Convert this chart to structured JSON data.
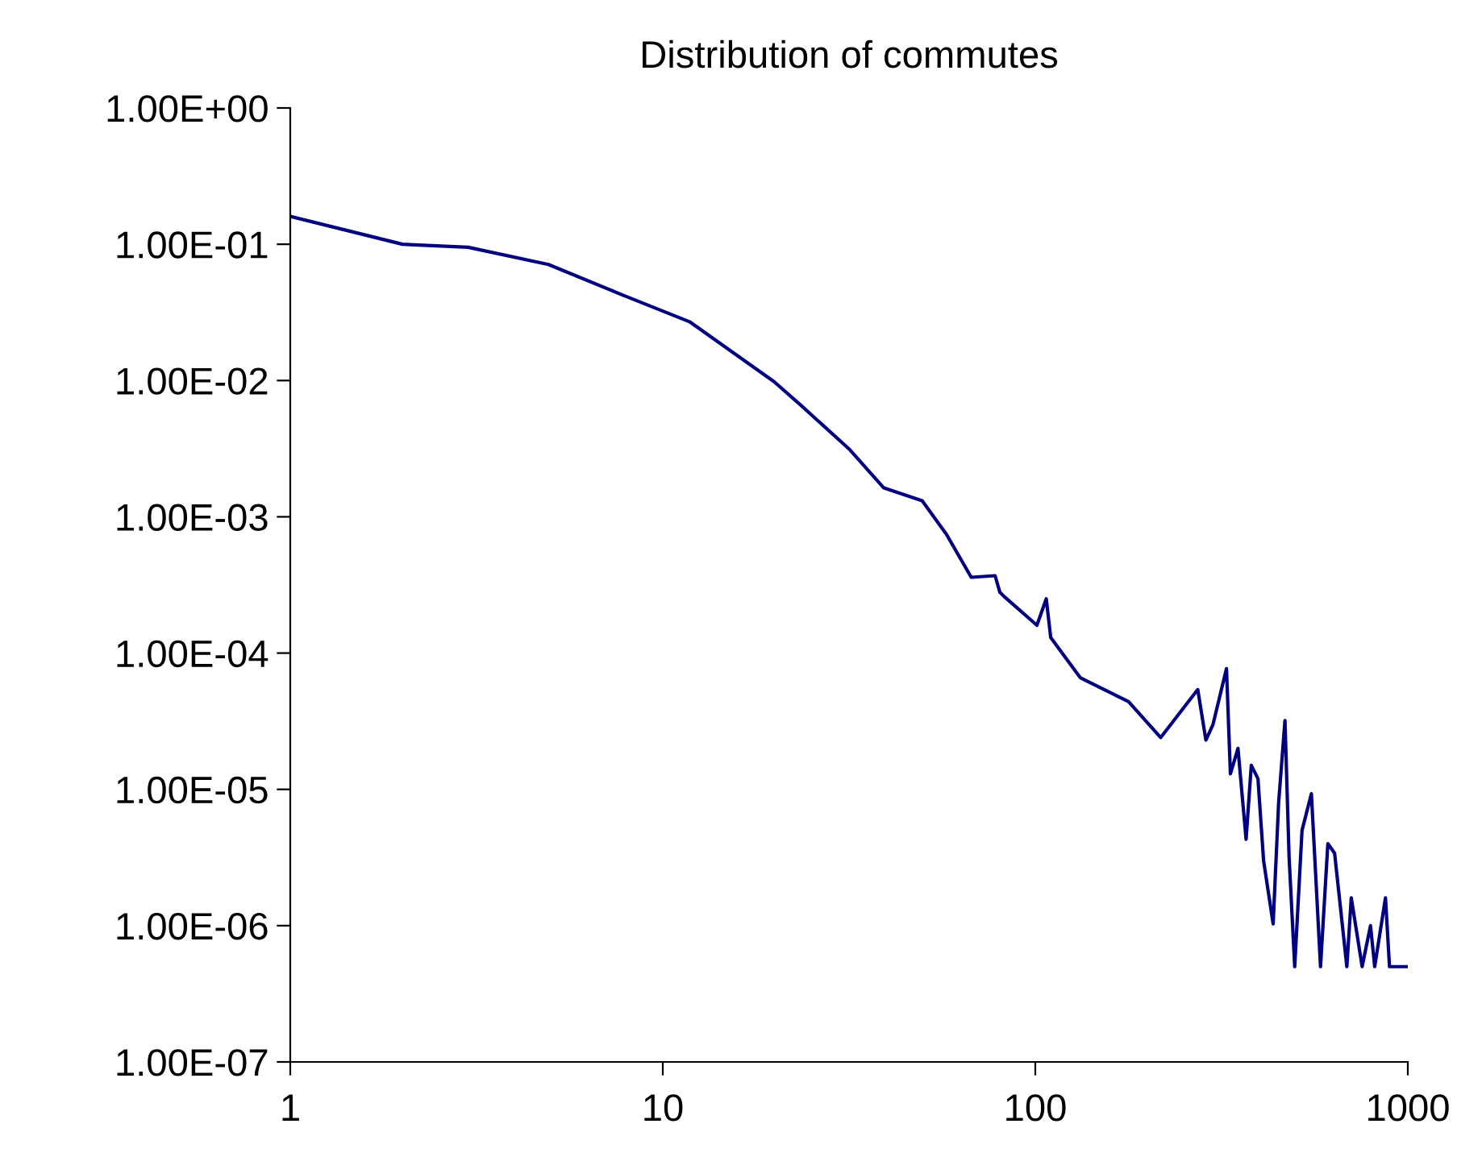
{
  "chart_data": {
    "type": "line",
    "title": "Distribution of commutes",
    "log": "xy",
    "x": [
      1,
      2,
      3,
      4.93,
      7.87,
      11.8,
      19.9,
      23.6,
      31.8,
      39.2,
      49.7,
      57.8,
      67.3,
      78,
      80.3,
      82.5,
      101,
      107,
      110,
      132,
      178,
      217,
      273,
      287,
      300,
      326,
      334,
      350,
      368,
      380,
      396,
      410,
      435,
      450,
      468,
      480,
      497,
      520,
      551,
      583,
      610,
      636,
      686,
      705,
      754,
      794,
      815,
      871,
      893,
      1000
    ],
    "series": [
      {
        "color": "#000080",
        "values": [
          0.16,
          0.1,
          0.095,
          0.071,
          0.042,
          0.027,
          0.0098,
          0.0065,
          0.0031,
          0.00163,
          0.00131,
          0.00074,
          0.00036,
          0.00037,
          0.00028,
          0.00026,
          0.00016,
          0.00025,
          0.00013,
          6.6e-05,
          4.4e-05,
          2.4e-05,
          5.4e-05,
          2.3e-05,
          3e-05,
          7.7e-05,
          1.3e-05,
          2e-05,
          4.3e-06,
          1.5e-05,
          1.2e-05,
          3e-06,
          1.03e-06,
          8e-06,
          3.2e-05,
          3.2e-06,
          5e-07,
          5e-06,
          9.3e-06,
          5e-07,
          4e-06,
          3.4e-06,
          5e-07,
          1.6e-06,
          5e-07,
          1e-06,
          5e-07,
          1.6e-06,
          5e-07,
          5e-07
        ]
      }
    ],
    "xlim": [
      1,
      1000
    ],
    "xticks": [
      1,
      10,
      100,
      1000
    ],
    "ylim": [
      1e-07,
      1
    ],
    "yticks": [
      {
        "value": 1e-07,
        "label": "1.00E-07"
      },
      {
        "value": 1e-06,
        "label": "1.00E-06"
      },
      {
        "value": 1e-05,
        "label": "1.00E-05"
      },
      {
        "value": 0.0001,
        "label": "1.00E-04"
      },
      {
        "value": 0.001,
        "label": "1.00E-03"
      },
      {
        "value": 0.01,
        "label": "1.00E-02"
      },
      {
        "value": 0.1,
        "label": "1.00E-01"
      },
      {
        "value": 1,
        "label": "1.00E+00"
      }
    ],
    "grid": false,
    "legend": false
  }
}
